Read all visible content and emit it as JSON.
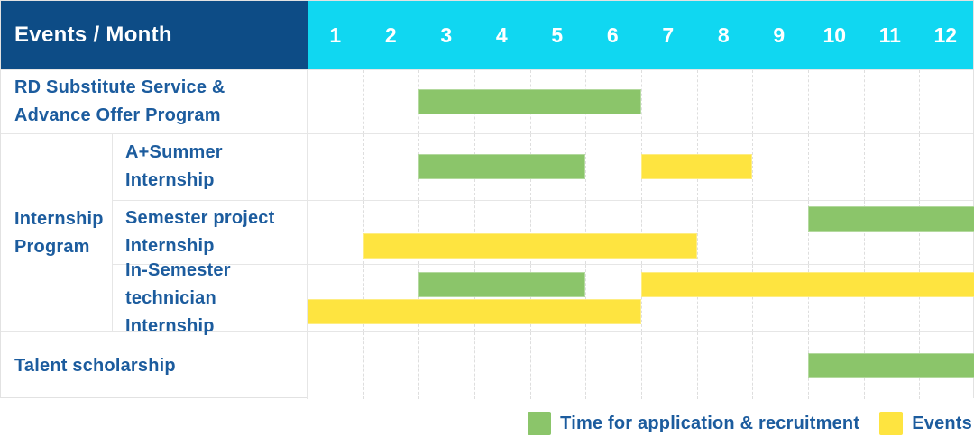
{
  "title_cell": "Events / Month",
  "months": [
    "1",
    "2",
    "3",
    "4",
    "5",
    "6",
    "7",
    "8",
    "9",
    "10",
    "11",
    "12"
  ],
  "group_label": "Internship\nProgram",
  "colors": {
    "header_bg": "#0d4c86",
    "months_bg": "#10d7f1",
    "label_text": "#1c5c9e",
    "recruitment": "#8bc56a",
    "event": "#fee440",
    "grid_line": "#dedede"
  },
  "chart_data": {
    "type": "gantt",
    "title": "Events / Month",
    "x_axis": {
      "unit": "month",
      "min": 1,
      "max": 12,
      "ticks": [
        1,
        2,
        3,
        4,
        5,
        6,
        7,
        8,
        9,
        10,
        11,
        12
      ]
    },
    "series_legend": [
      "Time for application & recruitment",
      "Events"
    ],
    "rows": [
      {
        "group": null,
        "label": "RD Substitute Service &\nAdvance Offer Program",
        "lanes": 1,
        "bars": [
          {
            "series": "Time for application & recruitment",
            "kind": "recruitment",
            "start_month": 3,
            "end_month": 6,
            "lane": 0
          }
        ]
      },
      {
        "group": "Internship Program",
        "label": "A+Summer\nInternship",
        "lanes": 1,
        "bars": [
          {
            "series": "Time for application & recruitment",
            "kind": "recruitment",
            "start_month": 3,
            "end_month": 5,
            "lane": 0
          },
          {
            "series": "Events",
            "kind": "event",
            "start_month": 7,
            "end_month": 8,
            "lane": 0
          }
        ]
      },
      {
        "group": "Internship Program",
        "label": "Semester project\nInternship",
        "lanes": 2,
        "bars": [
          {
            "series": "Time for application & recruitment",
            "kind": "recruitment",
            "start_month": 10,
            "end_month": 12,
            "lane": 0
          },
          {
            "series": "Events",
            "kind": "event",
            "start_month": 2,
            "end_month": 7,
            "lane": 1
          }
        ]
      },
      {
        "group": "Internship Program",
        "label": "In-Semester\ntechnician Internship",
        "lanes": 2,
        "bars": [
          {
            "series": "Time for application & recruitment",
            "kind": "recruitment",
            "start_month": 3,
            "end_month": 5,
            "lane": 0
          },
          {
            "series": "Events",
            "kind": "event",
            "start_month": 7,
            "end_month": 12,
            "lane": 0
          },
          {
            "series": "Events",
            "kind": "event",
            "start_month": 1,
            "end_month": 6,
            "lane": 1
          }
        ]
      },
      {
        "group": null,
        "label": "Talent scholarship",
        "lanes": 1,
        "bars": [
          {
            "series": "Time for application & recruitment",
            "kind": "recruitment",
            "start_month": 10,
            "end_month": 12,
            "lane": 0
          }
        ]
      }
    ]
  },
  "legend": [
    {
      "label": "Time for application & recruitment",
      "color_key": "recruitment"
    },
    {
      "label": "Events",
      "color_key": "event"
    }
  ]
}
